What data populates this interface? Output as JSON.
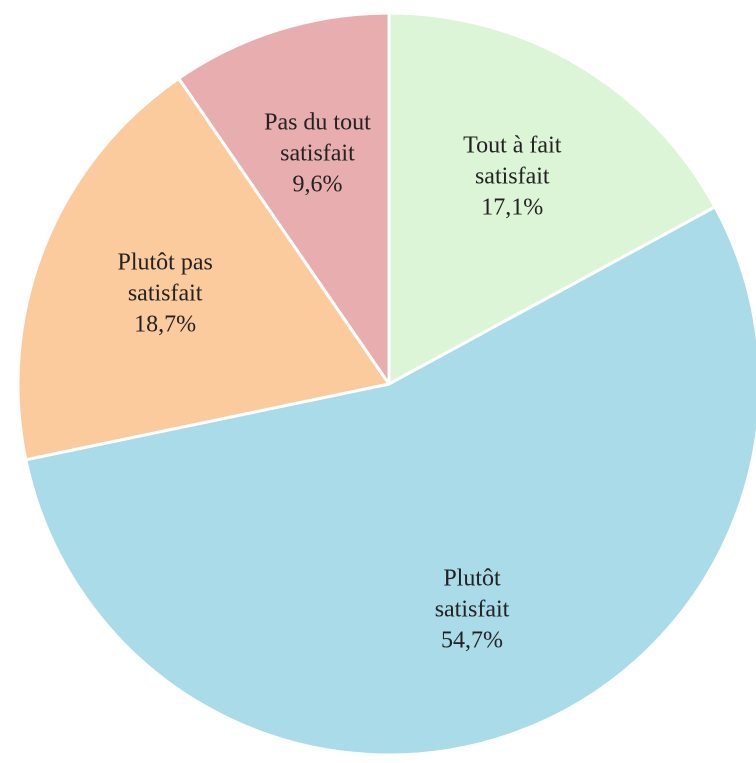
{
  "chart_data": {
    "type": "pie",
    "categories": [
      "Tout à fait satisfait",
      "Plutôt satisfait",
      "Plutôt pas satisfait",
      "Pas du tout satisfait"
    ],
    "values": [
      17.1,
      54.7,
      18.7,
      9.6
    ],
    "value_labels": [
      "17,1%",
      "54,7%",
      "18,7%",
      "9,6%"
    ],
    "colors": [
      "#dcf5d6",
      "#a9dbe8",
      "#fccb9d",
      "#e8adaf"
    ]
  }
}
